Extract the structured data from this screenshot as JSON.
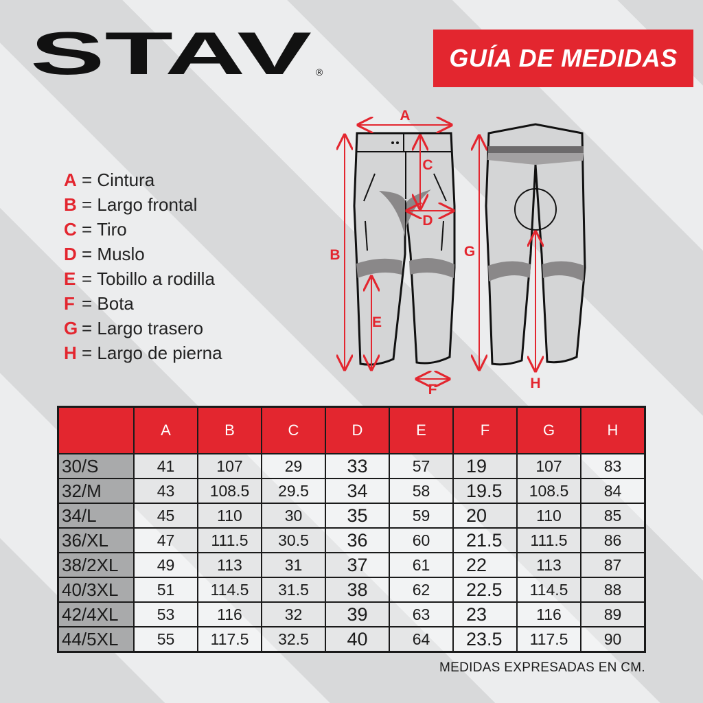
{
  "logo": {
    "text": "STAV",
    "registered": "®"
  },
  "title": "GUÍA DE MEDIDAS",
  "legend": [
    {
      "key": "A",
      "label": "= Cintura"
    },
    {
      "key": "B",
      "label": "= Largo frontal"
    },
    {
      "key": "C",
      "label": "= Tiro"
    },
    {
      "key": "D",
      "label": "= Muslo"
    },
    {
      "key": "E",
      "label": "= Tobillo a rodilla"
    },
    {
      "key": "F",
      "label": "= Bota"
    },
    {
      "key": "G",
      "label": "= Largo trasero"
    },
    {
      "key": "H",
      "label": "= Largo de pierna"
    }
  ],
  "diagram_labels": {
    "a": "A",
    "b": "B",
    "c": "C",
    "d": "D",
    "e": "E",
    "f": "F",
    "g": "G",
    "h": "H"
  },
  "colors": {
    "accent": "#e3262f",
    "size_column": "#a9aaab"
  },
  "table": {
    "headers": [
      "",
      "A",
      "B",
      "C",
      "D",
      "E",
      "F",
      "G",
      "H"
    ],
    "rows": [
      [
        "30/S",
        "41",
        "107",
        "29",
        "33",
        "57",
        "19",
        "107",
        "83"
      ],
      [
        "32/M",
        "43",
        "108.5",
        "29.5",
        "34",
        "58",
        "19.5",
        "108.5",
        "84"
      ],
      [
        "34/L",
        "45",
        "110",
        "30",
        "35",
        "59",
        "20",
        "110",
        "85"
      ],
      [
        "36/XL",
        "47",
        "111.5",
        "30.5",
        "36",
        "60",
        "21.5",
        "111.5",
        "86"
      ],
      [
        "38/2XL",
        "49",
        "113",
        "31",
        "37",
        "61",
        "22",
        "113",
        "87"
      ],
      [
        "40/3XL",
        "51",
        "114.5",
        "31.5",
        "38",
        "62",
        "22.5",
        "114.5",
        "88"
      ],
      [
        "42/4XL",
        "53",
        "116",
        "32",
        "39",
        "63",
        "23",
        "116",
        "89"
      ],
      [
        "44/5XL",
        "55",
        "117.5",
        "32.5",
        "40",
        "64",
        "23.5",
        "117.5",
        "90"
      ]
    ]
  },
  "footer": "MEDIDAS EXPRESADAS EN CM."
}
